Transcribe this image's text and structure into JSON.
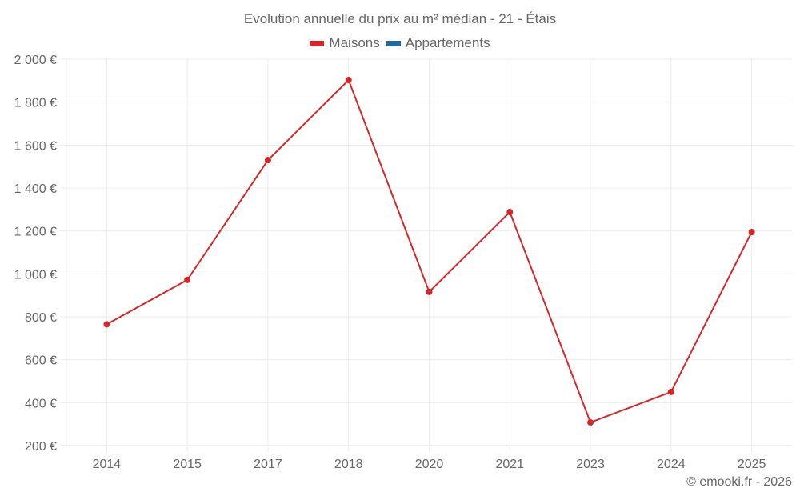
{
  "chart_data": {
    "type": "line",
    "title": "Evolution annuelle du prix au m² médian - 21 - Étais",
    "categories": [
      "2014",
      "2015",
      "2017",
      "2018",
      "2020",
      "2021",
      "2023",
      "2024",
      "2025"
    ],
    "series": [
      {
        "name": "Maisons",
        "color": "#d62728",
        "values": [
          765,
          972,
          1530,
          1903,
          916,
          1288,
          308,
          450,
          1195
        ]
      },
      {
        "name": "Appartements",
        "color": "#1f6aa5",
        "values": []
      }
    ],
    "xlabel": "",
    "ylabel": "",
    "ylim": [
      200,
      2000
    ],
    "yticks": [
      200,
      400,
      600,
      800,
      1000,
      1200,
      1400,
      1600,
      1800,
      2000
    ],
    "ytick_labels": [
      "200 €",
      "400 €",
      "600 €",
      "800 €",
      "1 000 €",
      "1 200 €",
      "1 400 €",
      "1 600 €",
      "1 800 €",
      "2 000 €"
    ],
    "grid": true,
    "legend_position": "top"
  },
  "header": {
    "title": "Evolution annuelle du prix au m² médian - 21 - Étais"
  },
  "legend": {
    "items": [
      {
        "label": "Maisons",
        "color": "#d62728"
      },
      {
        "label": "Appartements",
        "color": "#1f6aa5"
      }
    ]
  },
  "footer": {
    "credit": "© emooki.fr - 2026"
  }
}
